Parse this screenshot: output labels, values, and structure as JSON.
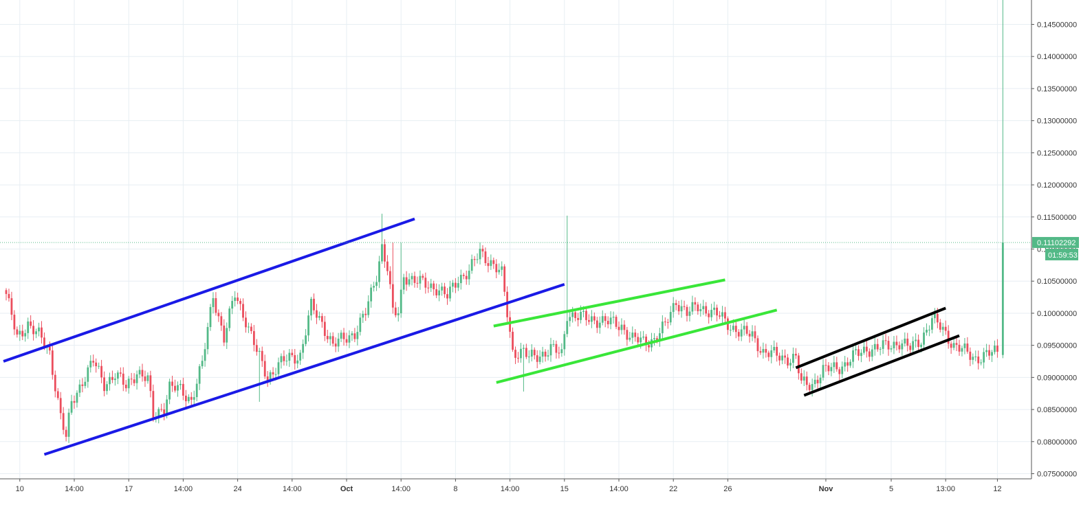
{
  "colors": {
    "background": "#ffffff",
    "grid": "#e7eef3",
    "axis": "#555555",
    "tick_text": "#333333",
    "up": "#53b987",
    "down": "#eb4d5c",
    "price_line": "#53b987",
    "price_label_bg": "#53b987",
    "price_label_text": "#ffffff"
  },
  "chart_data": {
    "type": "candlestick",
    "title": "",
    "xlabel": "",
    "ylabel": "",
    "ylim": [
      0.0742,
      0.1488
    ],
    "grid": true,
    "y_ticks": [
      "0.07500000",
      "0.08000000",
      "0.08500000",
      "0.09000000",
      "0.09500000",
      "0.10000000",
      "0.10500000",
      "0.11000000",
      "0.11500000",
      "0.12000000",
      "0.12500000",
      "0.13000000",
      "0.13500000",
      "0.14000000",
      "0.14500000"
    ],
    "x_ticks": [
      {
        "label": "10",
        "bar": 5
      },
      {
        "label": "14:00",
        "bar": 25
      },
      {
        "label": "17",
        "bar": 45
      },
      {
        "label": "14:00",
        "bar": 65
      },
      {
        "label": "24",
        "bar": 85
      },
      {
        "label": "14:00",
        "bar": 105
      },
      {
        "label": "Oct",
        "bar": 125
      },
      {
        "label": "14:00",
        "bar": 145
      },
      {
        "label": "8",
        "bar": 165
      },
      {
        "label": "14:00",
        "bar": 185
      },
      {
        "label": "15",
        "bar": 205
      },
      {
        "label": "14:00",
        "bar": 225
      },
      {
        "label": "22",
        "bar": 245
      },
      {
        "label": "26",
        "bar": 265
      },
      {
        "label": "Nov",
        "bar": 301
      },
      {
        "label": "5",
        "bar": 325
      },
      {
        "label": "13:00",
        "bar": 345
      },
      {
        "label": "12",
        "bar": 364
      }
    ],
    "current_price": {
      "value": 0.11102292,
      "label": "0.11102292",
      "countdown": "01:59:53"
    },
    "key_points": [
      [
        0,
        0.103
      ],
      [
        4,
        0.096
      ],
      [
        8,
        0.0985
      ],
      [
        12,
        0.0965
      ],
      [
        16,
        0.0938
      ],
      [
        20,
        0.084
      ],
      [
        22,
        0.0805
      ],
      [
        24,
        0.086
      ],
      [
        28,
        0.0895
      ],
      [
        32,
        0.0925
      ],
      [
        36,
        0.089
      ],
      [
        40,
        0.0905
      ],
      [
        44,
        0.0885
      ],
      [
        48,
        0.091
      ],
      [
        52,
        0.0895
      ],
      [
        54,
        0.084
      ],
      [
        58,
        0.0855
      ],
      [
        60,
        0.0885
      ],
      [
        64,
        0.088
      ],
      [
        68,
        0.0865
      ],
      [
        72,
        0.092
      ],
      [
        76,
        0.103
      ],
      [
        80,
        0.096
      ],
      [
        84,
        0.103
      ],
      [
        88,
        0.099
      ],
      [
        92,
        0.094
      ],
      [
        96,
        0.09
      ],
      [
        100,
        0.092
      ],
      [
        104,
        0.093
      ],
      [
        108,
        0.0935
      ],
      [
        112,
        0.101
      ],
      [
        116,
        0.0985
      ],
      [
        120,
        0.095
      ],
      [
        124,
        0.096
      ],
      [
        128,
        0.097
      ],
      [
        132,
        0.1
      ],
      [
        136,
        0.106
      ],
      [
        138,
        0.1105
      ],
      [
        140,
        0.107
      ],
      [
        142,
        0.1
      ],
      [
        144,
        0.1
      ],
      [
        146,
        0.106
      ],
      [
        150,
        0.105
      ],
      [
        154,
        0.1045
      ],
      [
        158,
        0.104
      ],
      [
        162,
        0.1025
      ],
      [
        166,
        0.1055
      ],
      [
        170,
        0.1065
      ],
      [
        174,
        0.1095
      ],
      [
        178,
        0.108
      ],
      [
        182,
        0.106
      ],
      [
        186,
        0.094
      ],
      [
        190,
        0.094
      ],
      [
        192,
        0.093
      ],
      [
        196,
        0.0935
      ],
      [
        200,
        0.0945
      ],
      [
        204,
        0.0935
      ],
      [
        206,
        0.1
      ],
      [
        210,
        0.0995
      ],
      [
        214,
        0.099
      ],
      [
        218,
        0.099
      ],
      [
        222,
        0.0985
      ],
      [
        226,
        0.098
      ],
      [
        230,
        0.096
      ],
      [
        234,
        0.0955
      ],
      [
        238,
        0.096
      ],
      [
        242,
        0.098
      ],
      [
        246,
        0.102
      ],
      [
        250,
        0.1
      ],
      [
        254,
        0.101
      ],
      [
        258,
        0.1005
      ],
      [
        262,
        0.0995
      ],
      [
        266,
        0.098
      ],
      [
        270,
        0.097
      ],
      [
        274,
        0.0965
      ],
      [
        278,
        0.094
      ],
      [
        282,
        0.0935
      ],
      [
        286,
        0.093
      ],
      [
        290,
        0.093
      ],
      [
        292,
        0.089
      ],
      [
        296,
        0.089
      ],
      [
        300,
        0.091
      ],
      [
        304,
        0.0915
      ],
      [
        308,
        0.092
      ],
      [
        312,
        0.0935
      ],
      [
        316,
        0.0945
      ],
      [
        320,
        0.0945
      ],
      [
        324,
        0.095
      ],
      [
        328,
        0.0955
      ],
      [
        332,
        0.0945
      ],
      [
        336,
        0.096
      ],
      [
        340,
        0.099
      ],
      [
        344,
        0.0975
      ],
      [
        348,
        0.095
      ],
      [
        352,
        0.094
      ],
      [
        356,
        0.093
      ],
      [
        360,
        0.0935
      ],
      [
        364,
        0.094
      ]
    ],
    "last_candle": {
      "open": 0.0935,
      "high": 0.1488,
      "low": 0.093,
      "close": 0.11102292
    },
    "spikes": [
      {
        "bar": 138,
        "high": 0.1155
      },
      {
        "bar": 142,
        "high": 0.111
      },
      {
        "bar": 145,
        "high": 0.111
      },
      {
        "bar": 206,
        "high": 0.1152
      },
      {
        "bar": 190,
        "low": 0.0878
      },
      {
        "bar": 93,
        "low": 0.0862
      }
    ],
    "trendlines": [
      {
        "name": "",
        "color": "#1a1ae6",
        "points": [
          [
            -1,
            0.0925
          ],
          [
            150,
            0.1147
          ]
        ]
      },
      {
        "name": "",
        "color": "#1a1ae6",
        "points": [
          [
            14,
            0.078
          ],
          [
            205,
            0.1045
          ]
        ]
      },
      {
        "name": "",
        "color": "#39e639",
        "points": [
          [
            179,
            0.098
          ],
          [
            264,
            0.1052
          ]
        ]
      },
      {
        "name": "",
        "color": "#39e639",
        "points": [
          [
            180,
            0.0892
          ],
          [
            283,
            0.1005
          ]
        ]
      },
      {
        "name": "",
        "color": "#000000",
        "points": [
          [
            290,
            0.0915
          ],
          [
            345,
            0.1008
          ]
        ]
      },
      {
        "name": "",
        "color": "#000000",
        "points": [
          [
            293,
            0.0872
          ],
          [
            350,
            0.0965
          ]
        ]
      }
    ]
  }
}
